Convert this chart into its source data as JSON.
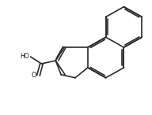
{
  "bg_color": "#ffffff",
  "line_color": "#2a2a2a",
  "line_width": 1.2,
  "text_color": "#1a1a1a",
  "figsize": [
    1.92,
    1.46
  ],
  "dpi": 100
}
